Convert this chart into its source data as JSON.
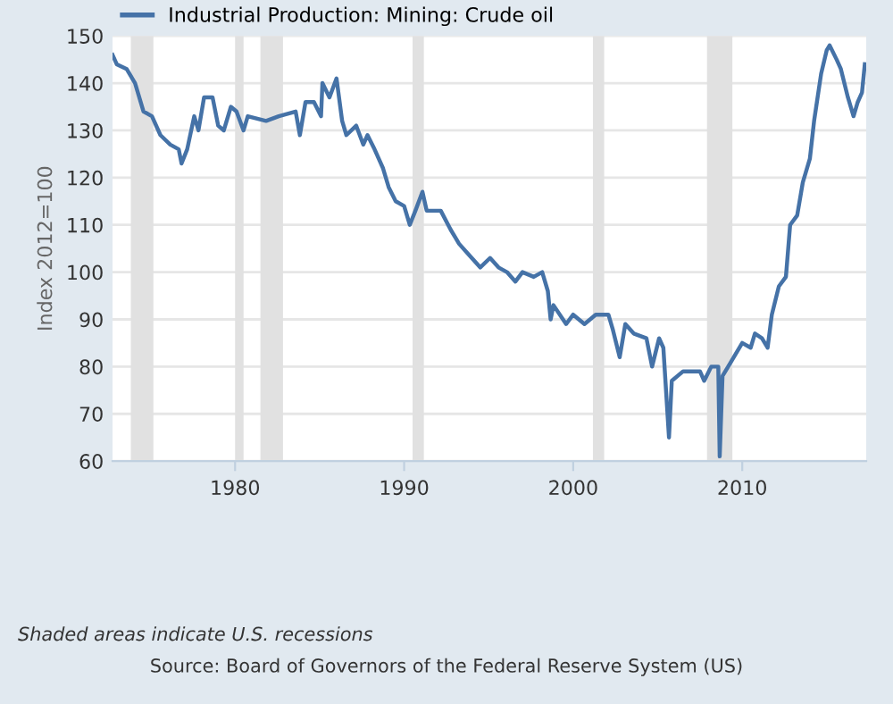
{
  "chart_data": {
    "type": "line",
    "ylabel": "Index 2012=100",
    "xlim": [
      "1972-10",
      "2017-05"
    ],
    "xticks": [
      "1980",
      "1990",
      "2000",
      "2010"
    ],
    "ylim": [
      60,
      150
    ],
    "yticks": [
      60,
      70,
      80,
      90,
      100,
      110,
      120,
      130,
      140,
      150
    ],
    "grid": "y",
    "legend": "top",
    "line_style": "solid",
    "marker": "none",
    "bands": [
      {
        "axis": "x",
        "from": "1973-11",
        "to": "1975-03",
        "color": "#e1e1e1"
      },
      {
        "axis": "x",
        "from": "1980-01",
        "to": "1980-07",
        "color": "#e1e1e1"
      },
      {
        "axis": "x",
        "from": "1981-07",
        "to": "1982-11",
        "color": "#e1e1e1"
      },
      {
        "axis": "x",
        "from": "1990-07",
        "to": "1991-03",
        "color": "#e1e1e1"
      },
      {
        "axis": "x",
        "from": "2001-03",
        "to": "2001-11",
        "color": "#e1e1e1"
      },
      {
        "axis": "x",
        "from": "2007-12",
        "to": "2009-06",
        "color": "#e1e1e1"
      }
    ],
    "annotations": [
      "Shaded areas indicate U.S. recessions",
      "Source: Board of Governors of the Federal Reserve System (US)"
    ],
    "x": [
      "1972-10",
      "1973-01",
      "1973-08",
      "1974-02",
      "1974-08",
      "1975-02",
      "1975-08",
      "1976-03",
      "1976-09",
      "1976-11",
      "1977-03",
      "1977-08",
      "1977-11",
      "1978-03",
      "1978-09",
      "1979-01",
      "1979-05",
      "1979-10",
      "1980-02",
      "1980-07",
      "1980-10",
      "1981-11",
      "1982-08",
      "1983-08",
      "1983-11",
      "1984-03",
      "1984-09",
      "1985-02",
      "1985-03",
      "1985-08",
      "1986-01",
      "1986-05",
      "1986-08",
      "1987-03",
      "1987-08",
      "1987-11",
      "1988-04",
      "1988-10",
      "1989-02",
      "1989-07",
      "1990-01",
      "1990-05",
      "1990-09",
      "1991-02",
      "1991-05",
      "1991-11",
      "1992-03",
      "1992-10",
      "1993-04",
      "1993-10",
      "1994-07",
      "1995-02",
      "1995-08",
      "1996-02",
      "1996-08",
      "1997-01",
      "1997-09",
      "1998-03",
      "1998-07",
      "1998-09",
      "1998-11",
      "1999-08",
      "2000-01",
      "2000-09",
      "2001-05",
      "2002-02",
      "2002-05",
      "2002-10",
      "2003-02",
      "2003-08",
      "2004-05",
      "2004-09",
      "2005-02",
      "2005-05",
      "2005-09",
      "2005-11",
      "2006-07",
      "2007-01",
      "2007-07",
      "2007-10",
      "2008-03",
      "2008-08",
      "2008-09",
      "2008-11",
      "2009-05",
      "2010-01",
      "2010-07",
      "2010-10",
      "2011-03",
      "2011-07",
      "2011-10",
      "2012-03",
      "2012-08",
      "2012-11",
      "2013-04",
      "2013-08",
      "2014-01",
      "2014-04",
      "2014-09",
      "2015-01",
      "2015-03",
      "2015-08",
      "2015-11",
      "2016-04",
      "2016-08",
      "2016-11",
      "2017-02",
      "2017-04"
    ],
    "series": [
      {
        "name": "Industrial Production: Mining: Crude oil",
        "color": "#4572a7",
        "values": [
          146,
          144,
          143,
          140,
          134,
          133,
          129,
          127,
          126,
          123,
          126,
          133,
          130,
          137,
          137,
          131,
          130,
          135,
          134,
          130,
          133,
          132,
          133,
          134,
          129,
          136,
          136,
          133,
          140,
          137,
          141,
          132,
          129,
          131,
          127,
          129,
          126,
          122,
          118,
          115,
          114,
          110,
          113,
          117,
          113,
          113,
          113,
          109,
          106,
          104,
          101,
          103,
          101,
          100,
          98,
          100,
          99,
          100,
          96,
          90,
          93,
          89,
          91,
          89,
          91,
          91,
          88,
          82,
          89,
          87,
          86,
          80,
          86,
          84,
          65,
          77,
          79,
          79,
          79,
          77,
          80,
          80,
          61,
          78,
          81,
          85,
          84,
          87,
          86,
          84,
          91,
          97,
          99,
          110,
          112,
          119,
          124,
          132,
          142,
          147,
          148,
          145,
          143,
          137,
          133,
          136,
          138,
          144
        ]
      }
    ]
  }
}
